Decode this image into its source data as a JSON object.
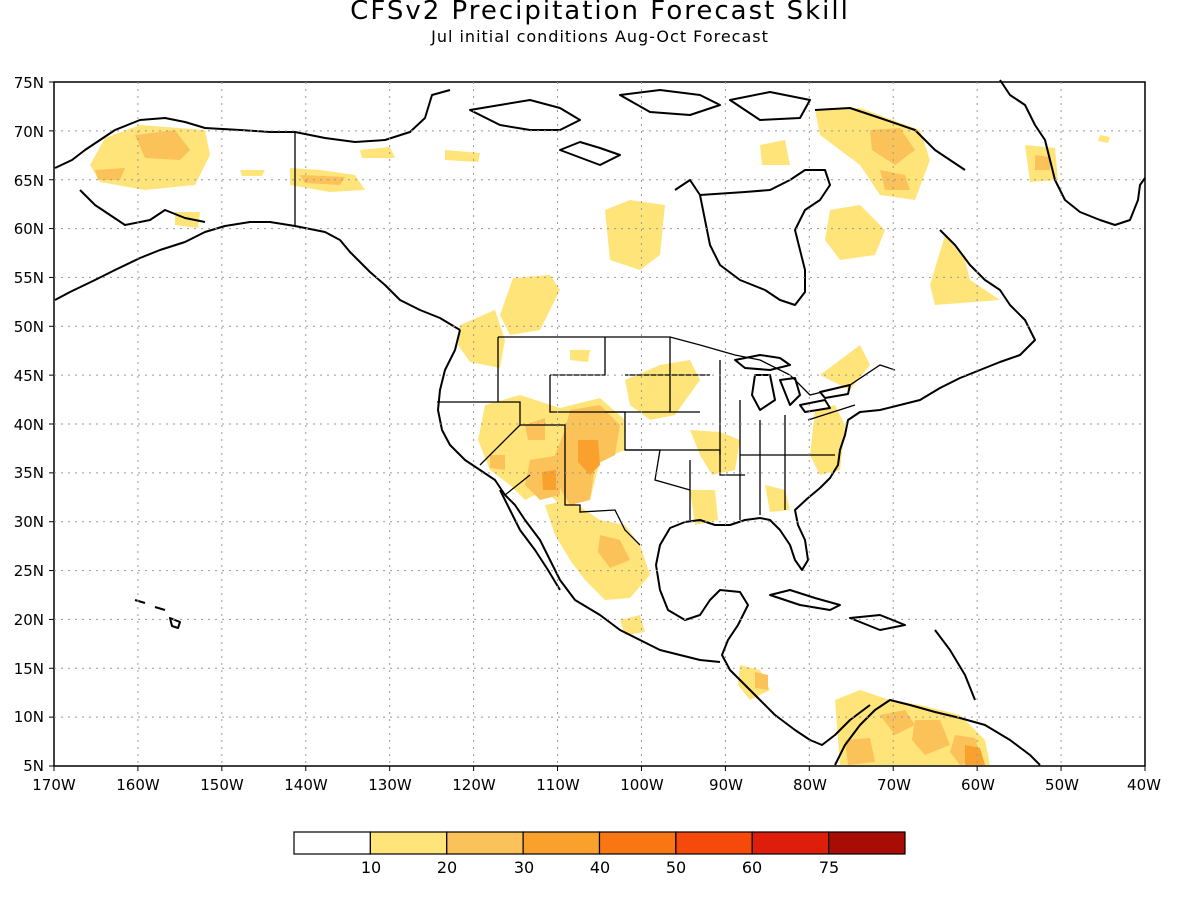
{
  "title": "CFSv2 Precipitation Forecast Skill",
  "subtitle": "Jul initial conditions  Aug-Oct Forecast",
  "map": {
    "lon_range": [
      -170,
      -40
    ],
    "lat_range": [
      5,
      75
    ],
    "lat_ticks": [
      "75N",
      "70N",
      "65N",
      "60N",
      "55N",
      "50N",
      "45N",
      "40N",
      "35N",
      "30N",
      "25N",
      "20N",
      "15N",
      "10N",
      "5N"
    ],
    "lon_ticks": [
      "170W",
      "160W",
      "150W",
      "140W",
      "130W",
      "120W",
      "110W",
      "100W",
      "90W",
      "80W",
      "70W",
      "60W",
      "50W",
      "40W"
    ],
    "gridlines": "dotted"
  },
  "colorbar": {
    "colors": [
      "#ffffff",
      "#ffe47a",
      "#fbc25a",
      "#f9a12c",
      "#f97712",
      "#f54a0a",
      "#dc1e0a",
      "#a70d05"
    ],
    "labels": [
      "10",
      "20",
      "30",
      "40",
      "50",
      "60",
      "75"
    ]
  }
}
